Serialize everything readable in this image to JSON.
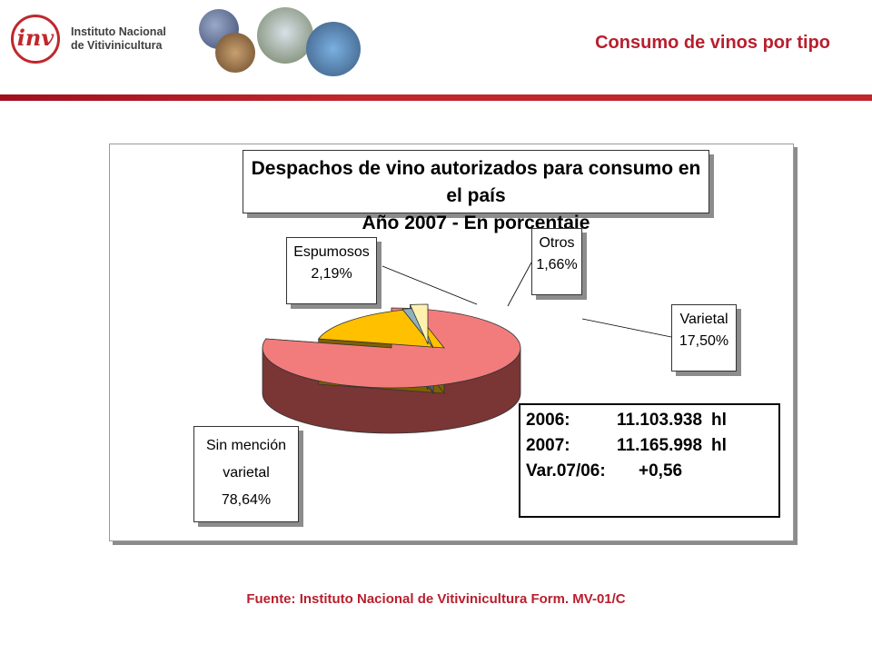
{
  "header": {
    "logo_letters": "inv",
    "logo_line1": "Instituto Nacional",
    "logo_line2": "de Vitivinicultura",
    "page_title": "Consumo de vinos por tipo"
  },
  "chart_data": {
    "type": "pie",
    "title_line1": "Despachos de vino autorizados para consumo en el país",
    "title_line2": "Año 2007 - En porcentaje",
    "slices": [
      {
        "name": "Sin mención varietal",
        "name_line1": "Sin mención",
        "name_line2": "varietal",
        "value": 78.64,
        "label": "78,64%",
        "color": "#f27c7c",
        "side": "#7a3535"
      },
      {
        "name": "Varietal",
        "name_line1": "Varietal",
        "name_line2": "",
        "value": 17.5,
        "label": "17,50%",
        "color": "#ffc000",
        "side": "#7f6000"
      },
      {
        "name": "Otros",
        "name_line1": "Otros",
        "name_line2": "",
        "value": 1.66,
        "label": "1,66%",
        "color": "#8fb0c0",
        "side": "#506a75"
      },
      {
        "name": "Espumosos",
        "name_line1": "Espumosos",
        "name_line2": "",
        "value": 2.19,
        "label": "2,19%",
        "color": "#fff2b0",
        "side": "#a08f50"
      }
    ],
    "stats": {
      "row1_label": "2006:",
      "row1_value": "11.103.938",
      "row1_unit": "hl",
      "row2_label": "2007:",
      "row2_value": "11.165.998",
      "row2_unit": "hl",
      "row3_label": "Var.07/06:",
      "row3_value": "+0,56"
    }
  },
  "footer": {
    "source": "Fuente: Instituto Nacional de Vitivinicultura Form. MV-01/C"
  }
}
